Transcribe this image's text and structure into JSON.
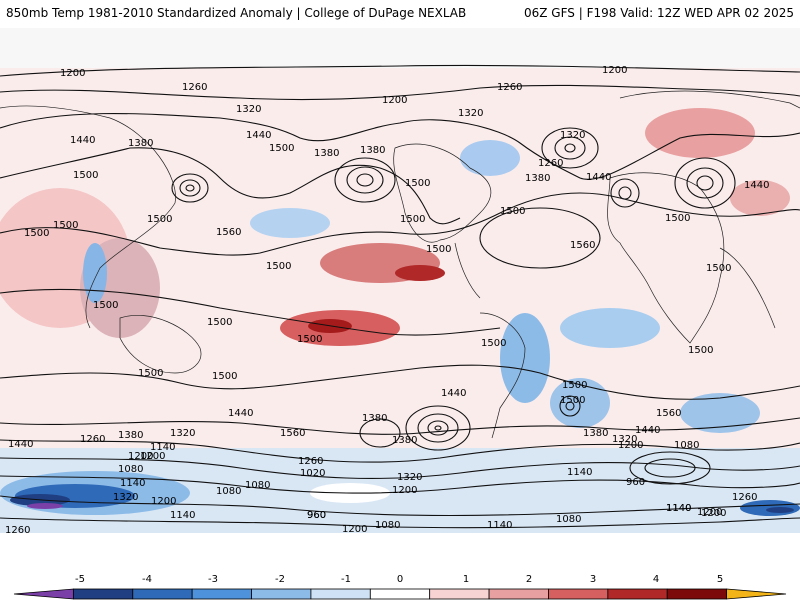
{
  "header": {
    "title_left": "850mb Temp 1981-2010 Standardized Anomaly | College of DuPage NEXLAB",
    "title_right": "06Z GFS | F198 Valid: 12Z WED APR 02 2025"
  },
  "map": {
    "contour_labels": [
      "1200",
      "1260",
      "1320",
      "1200",
      "1260",
      "1320",
      "1200",
      "1440",
      "1380",
      "1500",
      "1380",
      "1380",
      "1500",
      "1440",
      "1260",
      "1320",
      "1380",
      "1440",
      "1440",
      "1500",
      "1500",
      "1500",
      "1500",
      "1560",
      "1500",
      "1500",
      "1500",
      "1560",
      "1500",
      "1500",
      "1500",
      "1500",
      "1500",
      "1500",
      "1500",
      "1500",
      "1500",
      "1500",
      "1440",
      "1500",
      "1440",
      "1560",
      "1380",
      "1380",
      "1500",
      "1560",
      "1440",
      "1260",
      "1380",
      "1320",
      "1200",
      "1140",
      "1080",
      "1260",
      "1020",
      "1320",
      "1380",
      "1320",
      "1440",
      "1080",
      "1200",
      "1140",
      "1200",
      "1140",
      "1320",
      "1200",
      "1080",
      "1080",
      "1200",
      "960",
      "960",
      "1140",
      "1200",
      "1260",
      "1260",
      "1140",
      "960",
      "1200",
      "1080",
      "1140",
      "1080",
      "1140",
      "1200"
    ]
  },
  "colorbar": {
    "tick_labels": [
      "-5",
      "-4",
      "-3",
      "-2",
      "-1",
      "0",
      "1",
      "2",
      "3",
      "4",
      "5"
    ],
    "colors": [
      "#7b3fa8",
      "#1f3f82",
      "#2e6ab8",
      "#4f92dc",
      "#8dbbe8",
      "#cfe1f4",
      "#ffffff",
      "#f7d3d3",
      "#e9a0a0",
      "#d65f5f",
      "#b02828",
      "#7d0a0a",
      "#f2b418"
    ]
  }
}
